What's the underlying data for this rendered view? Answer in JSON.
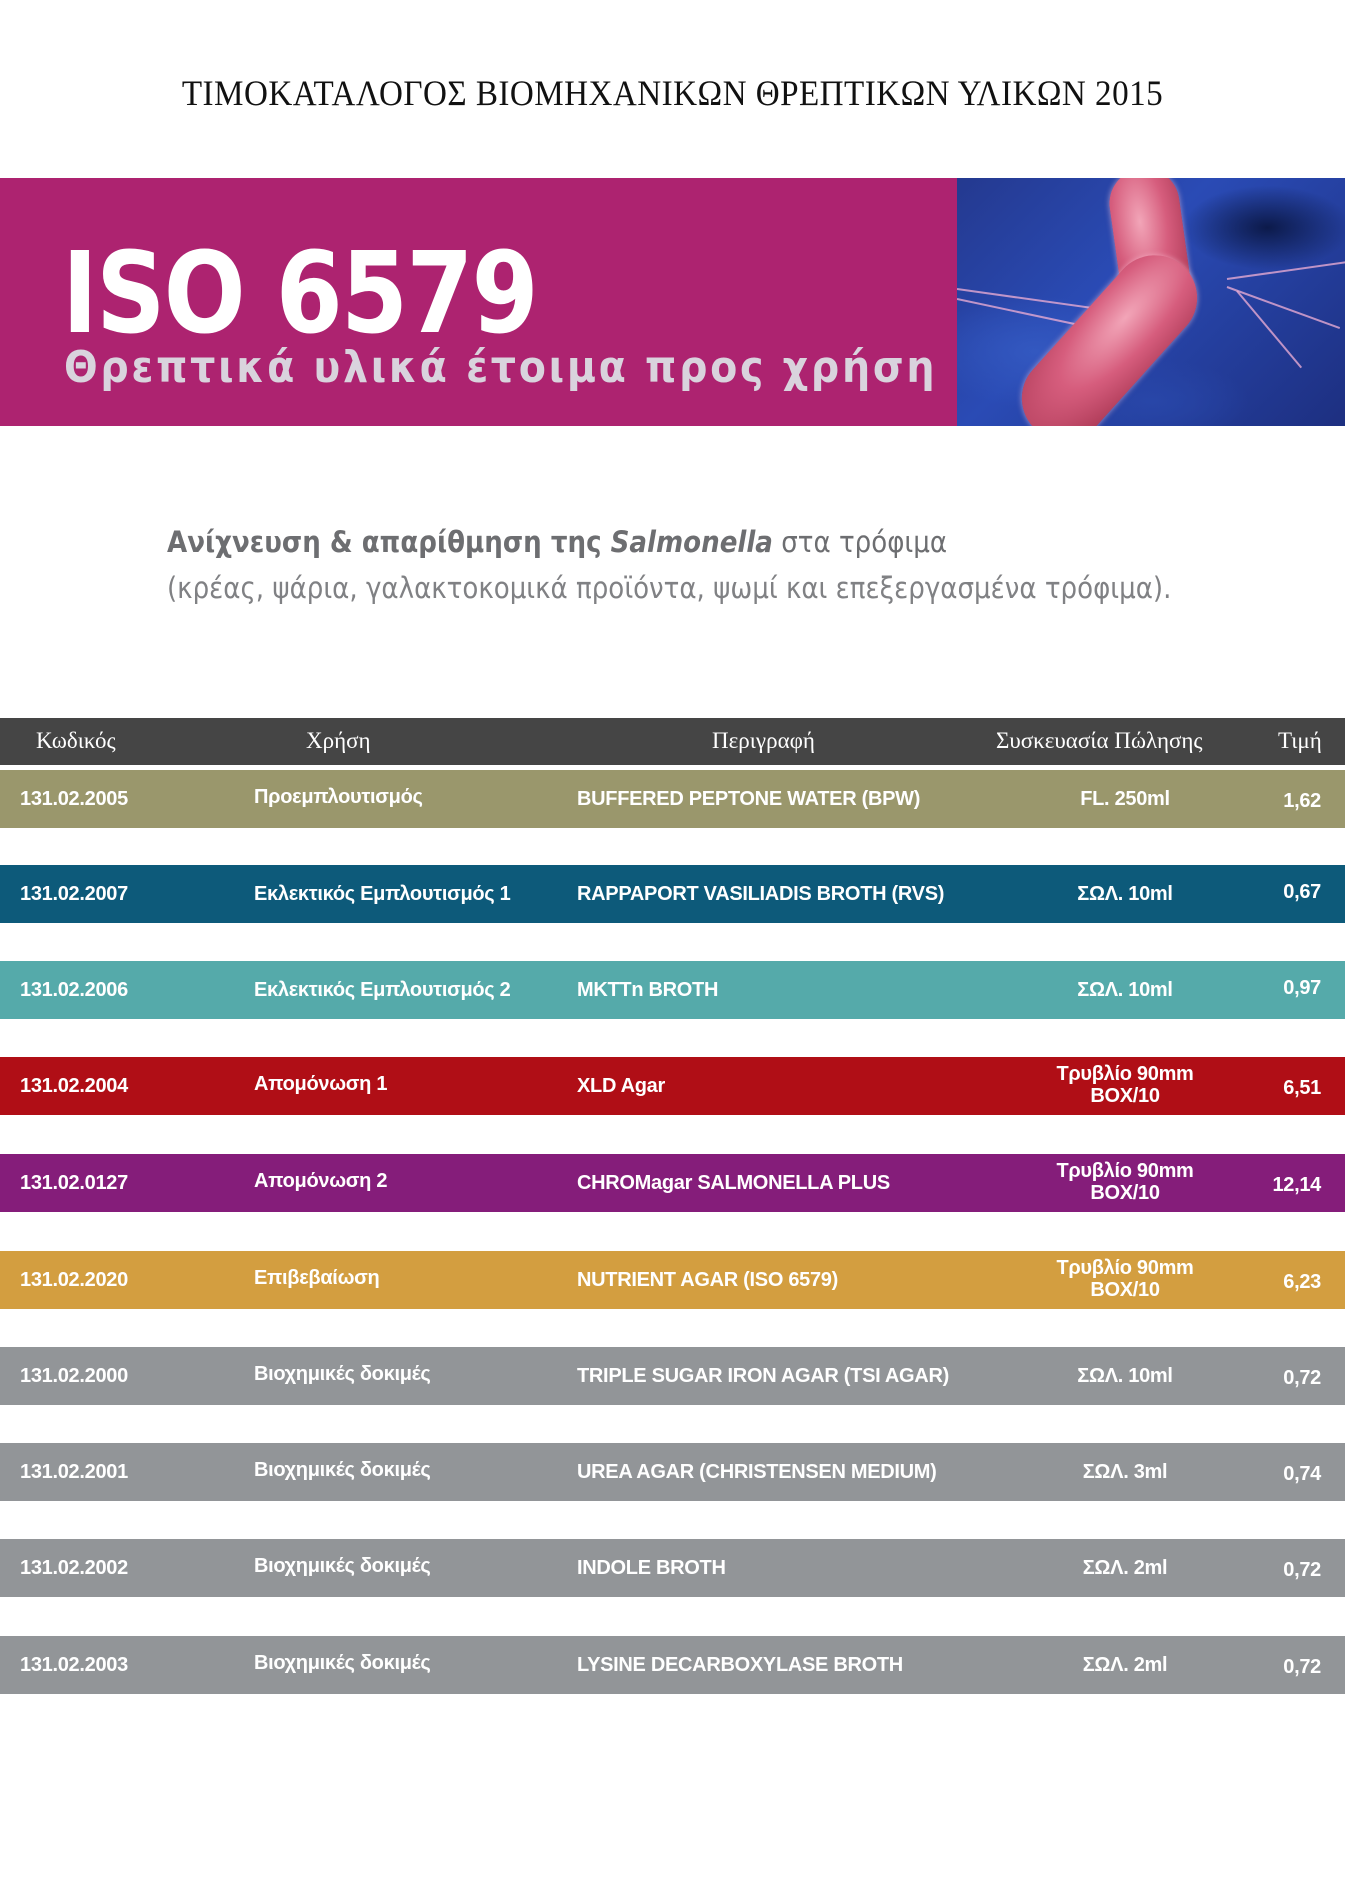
{
  "document": {
    "title": "ΤΙΜΟΚΑΤΑΛΟΓΟΣ ΒΙΟΜΗΧΑΝΙΚΩΝ ΘΡΕΠΤΙΚΩΝ ΥΛΙΚΩΝ 2015"
  },
  "banner": {
    "title": "ISO 6579",
    "subtitle": "Θρεπτικά υλικά έτοιμα προς χρήση",
    "background_color": "#ad2370",
    "image": "salmonella-bacteria-image"
  },
  "intro": {
    "line1_part1": "Ανίχνευση & απαρίθμηση της ",
    "line1_italic": "Salmonella",
    "line1_part2": " στα τρόφιμα",
    "line2": "(κρέας, ψάρια, γαλακτοκομικά προϊόντα, ψωμί και επεξεργασμένα τρόφιμα)."
  },
  "table": {
    "headers": {
      "code": "Κωδικός",
      "use": "Χρήση",
      "description": "Περιγραφή",
      "packaging": "Συσκευασία Πώλησης",
      "price": "Τιμή"
    },
    "header_color": "#454545",
    "rows": [
      {
        "code": "131.02.2005",
        "use": "Προεμπλουτισμός",
        "description": "BUFFERED PEPTONE WATER (BPW)",
        "pack_line1": "FL. 250ml",
        "pack_line2": "",
        "price": "1,62",
        "color": "#9a976c"
      },
      {
        "code": "131.02.2007",
        "use": "Εκλεκτικός Εμπλουτισμός 1",
        "description": "RAPPAPORT VASILIADIS BROTH (RVS)",
        "pack_line1": "ΣΩΛ. 10ml",
        "pack_line2": "",
        "price": "0,67",
        "color": "#0d5a7a"
      },
      {
        "code": "131.02.2006",
        "use": "Εκλεκτικός Εμπλουτισμός 2",
        "description": "MKTTn BROTH",
        "pack_line1": "ΣΩΛ. 10ml",
        "pack_line2": "",
        "price": "0,97",
        "color": "#55aaaa"
      },
      {
        "code": "131.02.2004",
        "use": "Απομόνωση 1",
        "description": "XLD Agar",
        "pack_line1": "Τρυβλίο 90mm",
        "pack_line2": "BOX/10",
        "price": "6,51",
        "color": "#b00e16"
      },
      {
        "code": "131.02.0127",
        "use": "Απομόνωση 2",
        "description": "CHROMagar   SALMONELLA PLUS",
        "pack_line1": "Τρυβλίο 90mm",
        "pack_line2": "BOX/10",
        "price": "12,14",
        "color": "#851d7a"
      },
      {
        "code": "131.02.2020",
        "use": "Επιβεβαίωση",
        "description": "NUTRIENT AGAR (ISO 6579)",
        "pack_line1": "Τρυβλίο 90mm",
        "pack_line2": "BOX/10",
        "price": "6,23",
        "color": "#d39e40"
      },
      {
        "code": "131.02.2000",
        "use": "Βιοχημικές δοκιμές",
        "description": "TRIPLE SUGAR IRON AGAR (TSI AGAR)",
        "pack_line1": "ΣΩΛ. 10ml",
        "pack_line2": "",
        "price": "0,72",
        "color": "#929598"
      },
      {
        "code": "131.02.2001",
        "use": "Βιοχημικές δοκιμές",
        "description": "UREA AGAR (CHRISTENSEN MEDIUM)",
        "pack_line1": "ΣΩΛ. 3ml",
        "pack_line2": "",
        "price": "0,74",
        "color": "#929598"
      },
      {
        "code": "131.02.2002",
        "use": "Βιοχημικές δοκιμές",
        "description": "INDOLE BROTH",
        "pack_line1": "ΣΩΛ. 2ml",
        "pack_line2": "",
        "price": "0,72",
        "color": "#929598"
      },
      {
        "code": "131.02.2003",
        "use": "Βιοχημικές δοκιμές",
        "description": "LYSINE DECARBOXYLASE BROTH",
        "pack_line1": "ΣΩΛ. 2ml",
        "pack_line2": "",
        "price": "0,72",
        "color": "#929598"
      }
    ]
  }
}
